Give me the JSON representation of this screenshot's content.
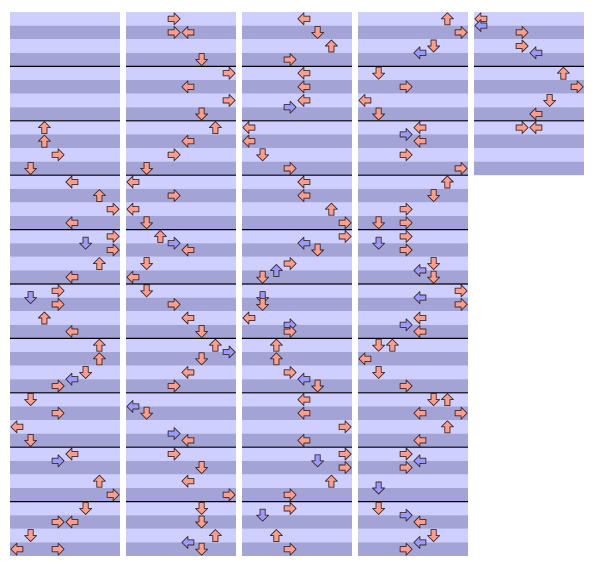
{
  "step_chart": {
    "lanes": 8,
    "beats_per_measure": 4,
    "band_colors": [
      "#cfcfff",
      "#a3a3d6"
    ],
    "measure_line_color": "#000000",
    "note_colors": {
      "quarter": "#ff9e8e",
      "eighth": "#9a9aff"
    },
    "columns": [
      {
        "measures": 10,
        "notes": [
          [
            8,
            2
          ],
          [
            9,
            2
          ],
          [
            10,
            3
          ],
          [
            11,
            1
          ],
          [
            12,
            4
          ],
          [
            13,
            6
          ],
          [
            14,
            7
          ],
          [
            15,
            4
          ],
          [
            16,
            7
          ],
          [
            16.5,
            5
          ],
          [
            17,
            7
          ],
          [
            18,
            6
          ],
          [
            19,
            4
          ],
          [
            20,
            3
          ],
          [
            20.5,
            1
          ],
          [
            21,
            3
          ],
          [
            22,
            2
          ],
          [
            23,
            4
          ],
          [
            24,
            6
          ],
          [
            25,
            6
          ],
          [
            26,
            5
          ],
          [
            26.5,
            4
          ],
          [
            27,
            3
          ],
          [
            28,
            1
          ],
          [
            29,
            3
          ],
          [
            30,
            0
          ],
          [
            31,
            1
          ],
          [
            32,
            4
          ],
          [
            32.5,
            3
          ],
          [
            34,
            6
          ],
          [
            35,
            7
          ],
          [
            36,
            5
          ],
          [
            37,
            3
          ],
          [
            37,
            4
          ],
          [
            38,
            1
          ],
          [
            39,
            0
          ],
          [
            39,
            3
          ]
        ]
      },
      {
        "measures": 10,
        "notes": [
          [
            0,
            3
          ],
          [
            1,
            3
          ],
          [
            1,
            4
          ],
          [
            3,
            5
          ],
          [
            4,
            7
          ],
          [
            5,
            4
          ],
          [
            6,
            7
          ],
          [
            7,
            5
          ],
          [
            8,
            6
          ],
          [
            9,
            4
          ],
          [
            10,
            3
          ],
          [
            11,
            1
          ],
          [
            12,
            0
          ],
          [
            13,
            3
          ],
          [
            14,
            0
          ],
          [
            15,
            1
          ],
          [
            16,
            2
          ],
          [
            16.5,
            3
          ],
          [
            17,
            4
          ],
          [
            18,
            1
          ],
          [
            19,
            0
          ],
          [
            20,
            1
          ],
          [
            21,
            3
          ],
          [
            22,
            4
          ],
          [
            23,
            5
          ],
          [
            24,
            6
          ],
          [
            24.5,
            7
          ],
          [
            25,
            5
          ],
          [
            26,
            4
          ],
          [
            27,
            3
          ],
          [
            28.5,
            0
          ],
          [
            29,
            1
          ],
          [
            30.5,
            3
          ],
          [
            31,
            4
          ],
          [
            32,
            3
          ],
          [
            33,
            5
          ],
          [
            34,
            4
          ],
          [
            35,
            7
          ],
          [
            36,
            5
          ],
          [
            37,
            5
          ],
          [
            38,
            6
          ],
          [
            38.5,
            4
          ],
          [
            39,
            5
          ]
        ]
      },
      {
        "measures": 10,
        "notes": [
          [
            0,
            4
          ],
          [
            1,
            5
          ],
          [
            2,
            6
          ],
          [
            3,
            3
          ],
          [
            4,
            4
          ],
          [
            5,
            4
          ],
          [
            6,
            4
          ],
          [
            6.5,
            3
          ],
          [
            8,
            0
          ],
          [
            9,
            0
          ],
          [
            10,
            1
          ],
          [
            11,
            3
          ],
          [
            12,
            4
          ],
          [
            13,
            4
          ],
          [
            14,
            6
          ],
          [
            15,
            7
          ],
          [
            16,
            7
          ],
          [
            16.5,
            4
          ],
          [
            17,
            5
          ],
          [
            18,
            3
          ],
          [
            18.5,
            2
          ],
          [
            19,
            1
          ],
          [
            20.5,
            1
          ],
          [
            21,
            1
          ],
          [
            22,
            0
          ],
          [
            22.5,
            3
          ],
          [
            23,
            3
          ],
          [
            24,
            2
          ],
          [
            25,
            2
          ],
          [
            26,
            3
          ],
          [
            26.5,
            4
          ],
          [
            27,
            5
          ],
          [
            28,
            4
          ],
          [
            29,
            4
          ],
          [
            30,
            7
          ],
          [
            31,
            4
          ],
          [
            32,
            7
          ],
          [
            32.5,
            5
          ],
          [
            33,
            7
          ],
          [
            34,
            6
          ],
          [
            35,
            3
          ],
          [
            36,
            3
          ],
          [
            36.5,
            1
          ],
          [
            38,
            2
          ],
          [
            39,
            3
          ]
        ]
      },
      {
        "measures": 10,
        "notes": [
          [
            0,
            6
          ],
          [
            1,
            7
          ],
          [
            2,
            5
          ],
          [
            2.5,
            4
          ],
          [
            4,
            1
          ],
          [
            5,
            3
          ],
          [
            6,
            0
          ],
          [
            7,
            1
          ],
          [
            8,
            4
          ],
          [
            8.5,
            3
          ],
          [
            9,
            4
          ],
          [
            10,
            3
          ],
          [
            11,
            7
          ],
          [
            12,
            6
          ],
          [
            13,
            5
          ],
          [
            14,
            3
          ],
          [
            15,
            1
          ],
          [
            15,
            3
          ],
          [
            16,
            3
          ],
          [
            16.5,
            1
          ],
          [
            17,
            3
          ],
          [
            18,
            5
          ],
          [
            18.5,
            4
          ],
          [
            19,
            5
          ],
          [
            20,
            7
          ],
          [
            20.5,
            4
          ],
          [
            21,
            7
          ],
          [
            22,
            4
          ],
          [
            22.5,
            3
          ],
          [
            23,
            4
          ],
          [
            24,
            1
          ],
          [
            24,
            2
          ],
          [
            25,
            0
          ],
          [
            26,
            1
          ],
          [
            27,
            3
          ],
          [
            28,
            5
          ],
          [
            28,
            6
          ],
          [
            29,
            4
          ],
          [
            29,
            7
          ],
          [
            30,
            6
          ],
          [
            31,
            4
          ],
          [
            32,
            3
          ],
          [
            32.5,
            4
          ],
          [
            33,
            3
          ],
          [
            34.5,
            1
          ],
          [
            36,
            1
          ],
          [
            36.5,
            3
          ],
          [
            37,
            4
          ],
          [
            38,
            5
          ],
          [
            38.5,
            4
          ],
          [
            39,
            3
          ]
        ]
      },
      {
        "measures": 3,
        "notes": [
          [
            0,
            0
          ],
          [
            0.5,
            0
          ],
          [
            1,
            3
          ],
          [
            2,
            3
          ],
          [
            2.5,
            4
          ],
          [
            4,
            6
          ],
          [
            5,
            7
          ],
          [
            6,
            5
          ],
          [
            7,
            4
          ],
          [
            8,
            3
          ],
          [
            8,
            4
          ]
        ]
      }
    ]
  }
}
